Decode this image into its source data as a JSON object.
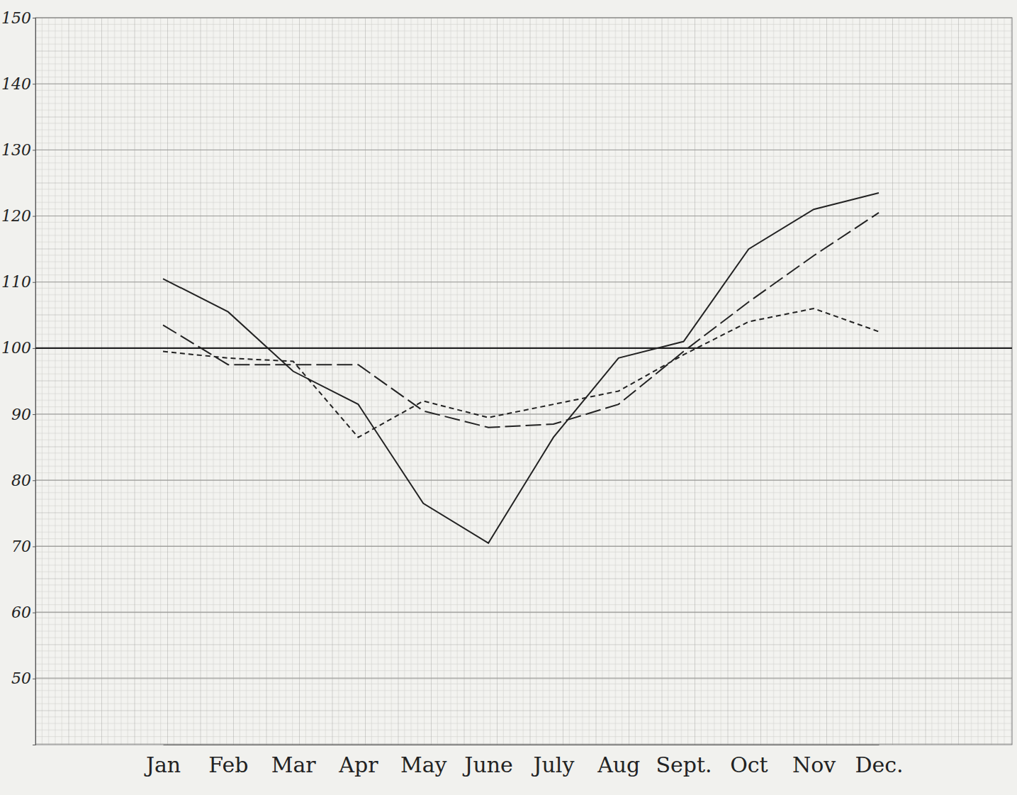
{
  "chart_data": {
    "type": "line",
    "categories": [
      "Jan",
      "Feb",
      "Mar",
      "Apr",
      "May",
      "June",
      "July",
      "Aug",
      "Sept.",
      "Oct",
      "Nov",
      "Dec."
    ],
    "series": [
      {
        "color": "#222222",
        "line_style": "solid",
        "values": [
          110.5,
          105.5,
          96.5,
          91.5,
          76.5,
          70.5,
          86.5,
          98.5,
          101,
          115,
          121,
          123.5
        ]
      },
      {
        "color": "#222222",
        "line_style": "long-dash",
        "values": [
          103.5,
          97.5,
          97.5,
          97.5,
          90.5,
          88,
          88.5,
          91.5,
          99.5,
          107,
          114,
          120.5
        ]
      },
      {
        "color": "#222222",
        "line_style": "short-dash",
        "values": [
          99.5,
          98.5,
          98,
          86.5,
          92,
          89.5,
          91.5,
          93.5,
          99,
          104,
          106,
          102.5
        ]
      }
    ],
    "reference_line": 100,
    "ylim": [
      40,
      150
    ],
    "yticks": [
      50,
      60,
      70,
      80,
      90,
      100,
      110,
      120,
      130,
      140,
      150
    ],
    "grid": true
  }
}
